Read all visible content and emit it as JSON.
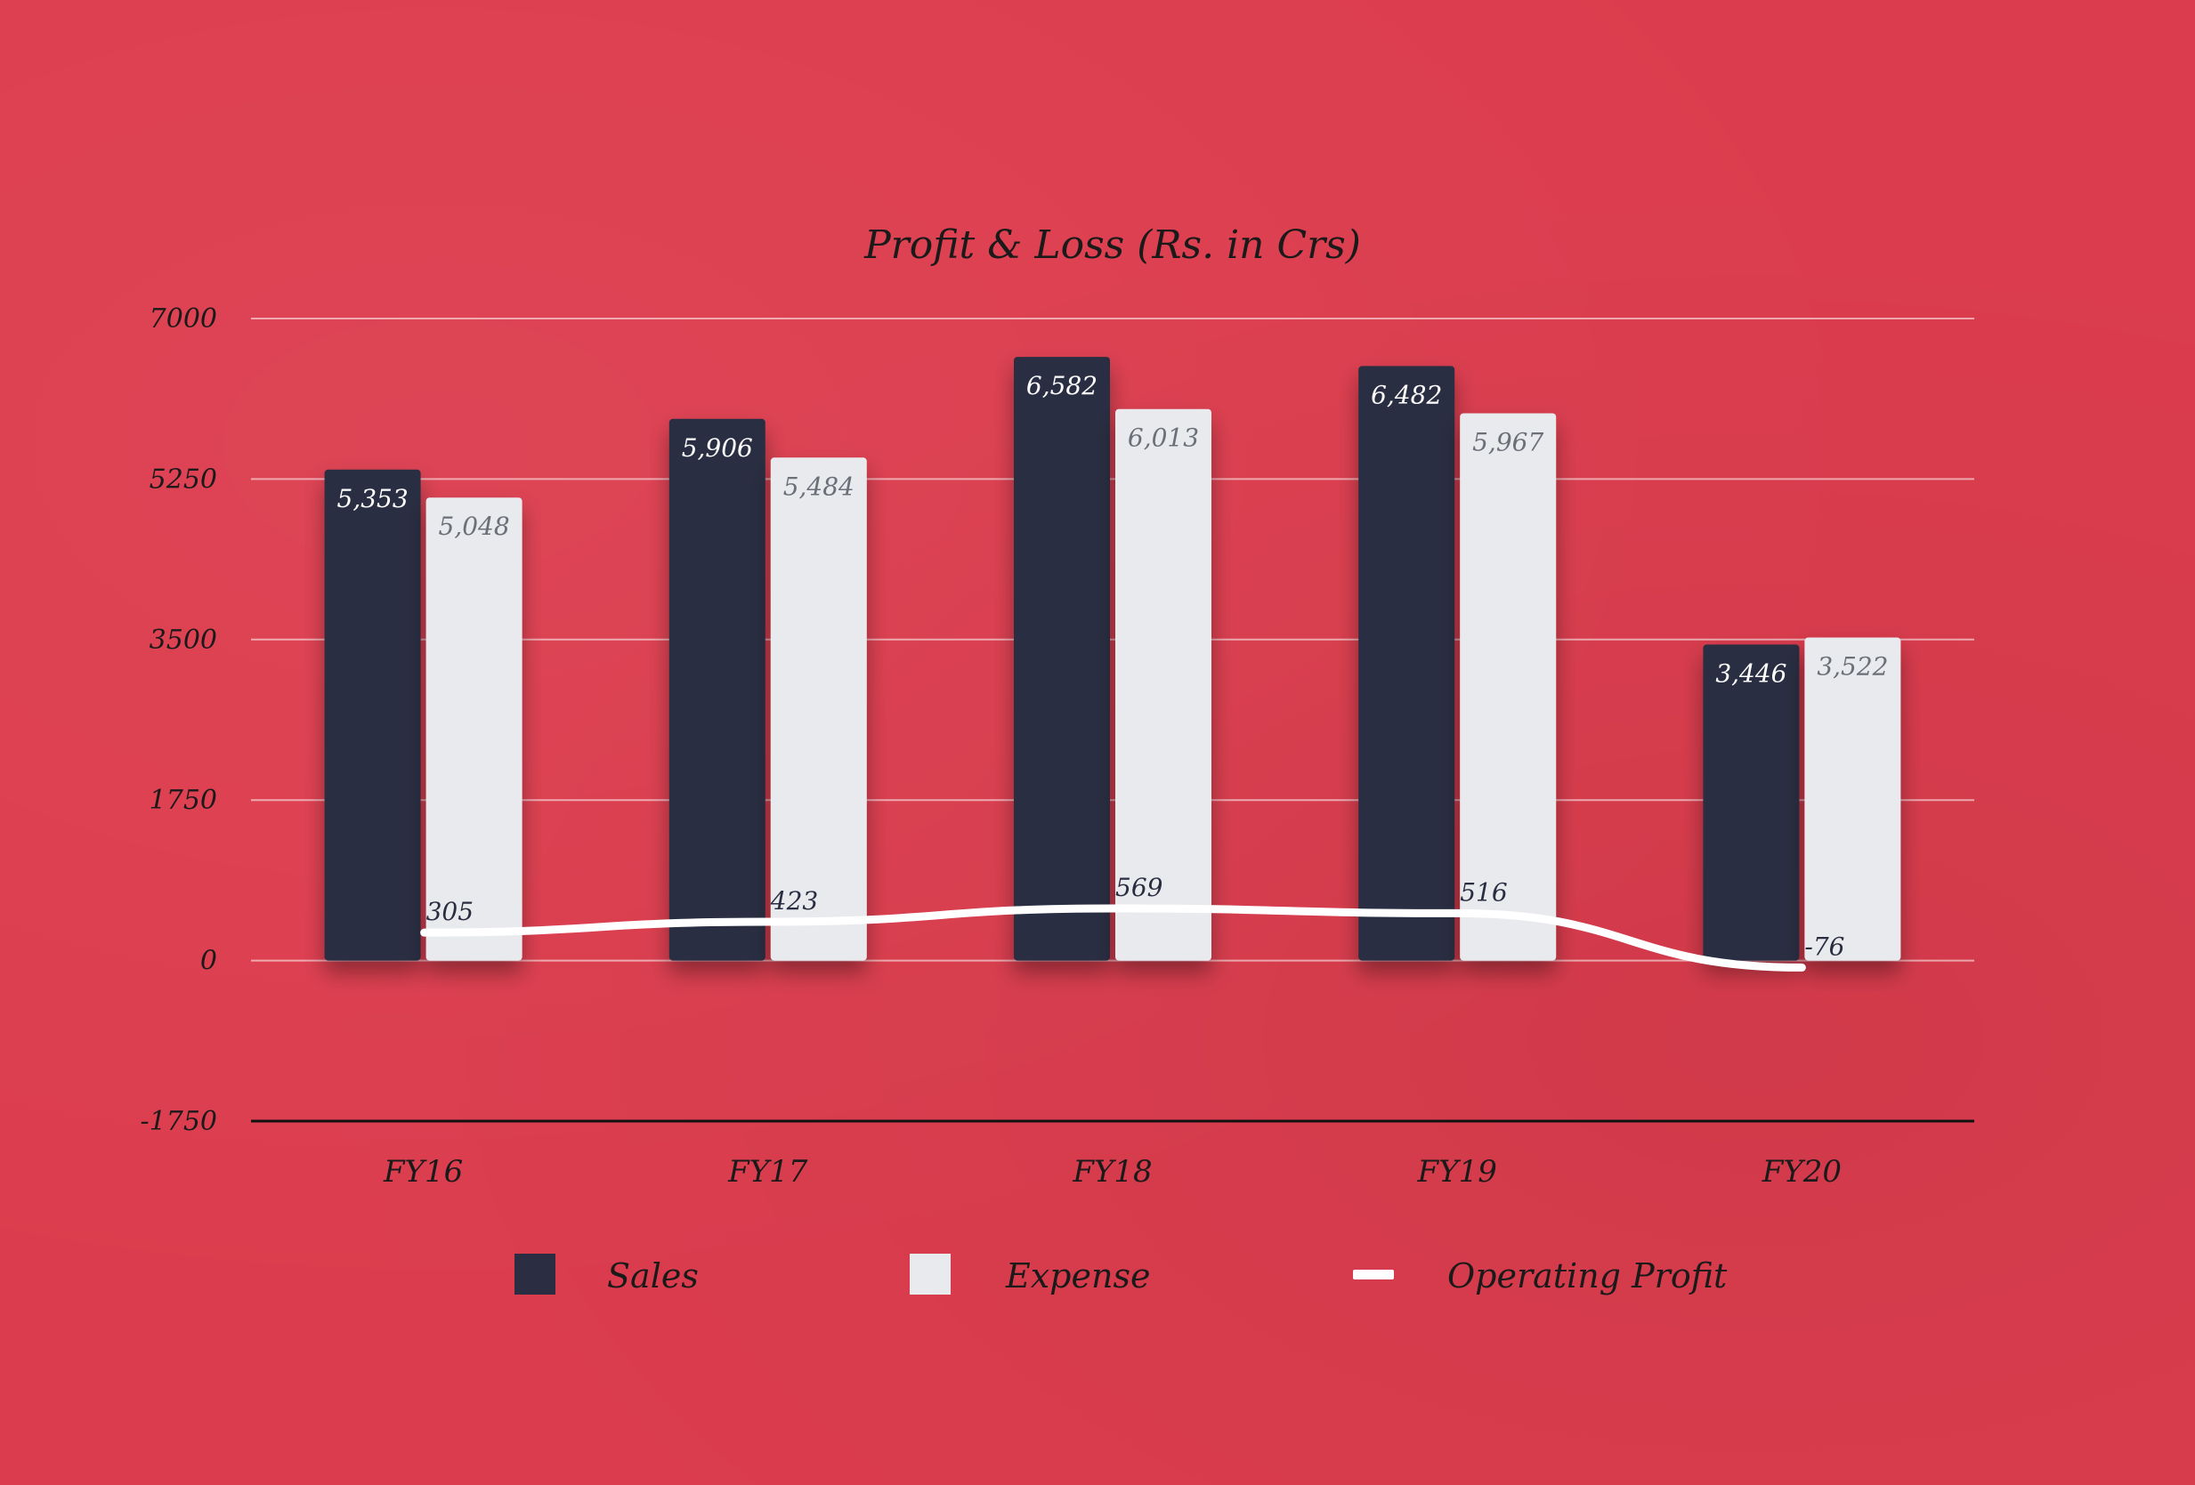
{
  "chart_data": {
    "type": "bar",
    "title": "Profit & Loss (Rs. in Crs)",
    "categories": [
      "FY16",
      "FY17",
      "FY18",
      "FY19",
      "FY20"
    ],
    "series": [
      {
        "name": "Sales",
        "type": "bar",
        "color": "#2b2d42",
        "values": [
          5353,
          5906,
          6582,
          6482,
          3446
        ],
        "labels": [
          "5,353",
          "5,906",
          "6,582",
          "6,482",
          "3,446"
        ]
      },
      {
        "name": "Expense",
        "type": "bar",
        "color": "#e8eaed",
        "values": [
          5048,
          5484,
          6013,
          5967,
          3522
        ],
        "labels": [
          "5,048",
          "5,484",
          "6,013",
          "5,967",
          "3,522"
        ]
      },
      {
        "name": "Operating Profit",
        "type": "line",
        "color": "#ffffff",
        "values": [
          305,
          423,
          569,
          516,
          -76
        ],
        "labels": [
          "305",
          "423",
          "569",
          "516",
          "-76"
        ]
      }
    ],
    "y_ticks": [
      "7000",
      "5250",
      "3500",
      "1750",
      "0",
      "-1750"
    ],
    "ylim": [
      -1750,
      7000
    ],
    "grid": true,
    "legend_position": "bottom"
  }
}
